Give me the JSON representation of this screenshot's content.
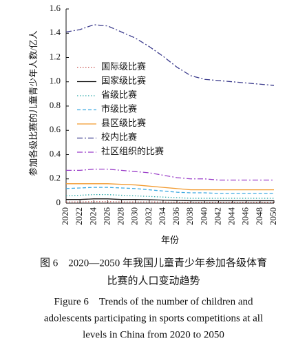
{
  "chart_data": {
    "type": "line",
    "y_label": "参加各级比赛的儿童青少年人数/亿人",
    "x_label": "年份",
    "x": [
      2020,
      2022,
      2024,
      2026,
      2028,
      2030,
      2032,
      2034,
      2036,
      2038,
      2040,
      2042,
      2044,
      2046,
      2048,
      2050
    ],
    "xlim": [
      2020,
      2050
    ],
    "xticks": [
      2020,
      2022,
      2024,
      2026,
      2028,
      2030,
      2032,
      2034,
      2036,
      2038,
      2040,
      2042,
      2044,
      2046,
      2048,
      2050
    ],
    "ylim": [
      0,
      1.6
    ],
    "yticks": [
      0,
      0.2,
      0.4,
      0.6,
      0.8,
      {
        "value": 1,
        "label": "1.0"
      },
      1.2,
      1.4,
      1.6
    ],
    "grid": false,
    "legend": "left",
    "series": [
      {
        "name": "国际级比赛",
        "color": "#c8504d",
        "dash": "dot",
        "values": [
          0.01,
          0.01,
          0.012,
          0.012,
          0.01,
          0.01,
          0.01,
          0.009,
          0.008,
          0.007,
          0.007,
          0.007,
          0.007,
          0.007,
          0.007,
          0.007
        ]
      },
      {
        "name": "国家级比赛",
        "color": "#111111",
        "dash": "solid",
        "values": [
          0.03,
          0.03,
          0.035,
          0.035,
          0.03,
          0.03,
          0.028,
          0.025,
          0.022,
          0.02,
          0.02,
          0.02,
          0.02,
          0.02,
          0.02,
          0.02
        ]
      },
      {
        "name": "省级比赛",
        "color": "#2aa7a7",
        "dash": "dot",
        "values": [
          0.06,
          0.065,
          0.07,
          0.07,
          0.065,
          0.06,
          0.055,
          0.05,
          0.045,
          0.04,
          0.04,
          0.04,
          0.04,
          0.04,
          0.04,
          0.04
        ]
      },
      {
        "name": "市级比赛",
        "color": "#3aa8e0",
        "dash": "dash",
        "values": [
          0.12,
          0.125,
          0.13,
          0.13,
          0.125,
          0.12,
          0.11,
          0.1,
          0.09,
          0.085,
          0.085,
          0.08,
          0.08,
          0.08,
          0.08,
          0.08
        ]
      },
      {
        "name": "县区级比赛",
        "color": "#f29a2e",
        "dash": "solid",
        "values": [
          0.16,
          0.16,
          0.16,
          0.16,
          0.155,
          0.15,
          0.14,
          0.13,
          0.12,
          0.11,
          0.11,
          0.11,
          0.11,
          0.11,
          0.11,
          0.11
        ]
      },
      {
        "name": "校内比赛",
        "color": "#3a3a8c",
        "dash": "dashdot",
        "values": [
          1.41,
          1.43,
          1.47,
          1.46,
          1.41,
          1.36,
          1.29,
          1.21,
          1.12,
          1.05,
          1.02,
          1.01,
          1.0,
          0.99,
          0.98,
          0.97
        ]
      },
      {
        "name": "社区组织的比赛",
        "color": "#9b3fc9",
        "dash": "dashdot",
        "values": [
          0.27,
          0.27,
          0.28,
          0.28,
          0.27,
          0.26,
          0.25,
          0.23,
          0.21,
          0.2,
          0.2,
          0.19,
          0.19,
          0.19,
          0.19,
          0.19
        ]
      }
    ]
  },
  "caption": {
    "zh": [
      "图 6　2020—2050 年我国儿童青少年参加各级体育",
      "比赛的人口变动趋势"
    ],
    "en": [
      "Figure 6　Trends of the number of children and",
      "adolescents participating in sports competitions at all",
      "levels in China from 2020 to 2050"
    ]
  }
}
